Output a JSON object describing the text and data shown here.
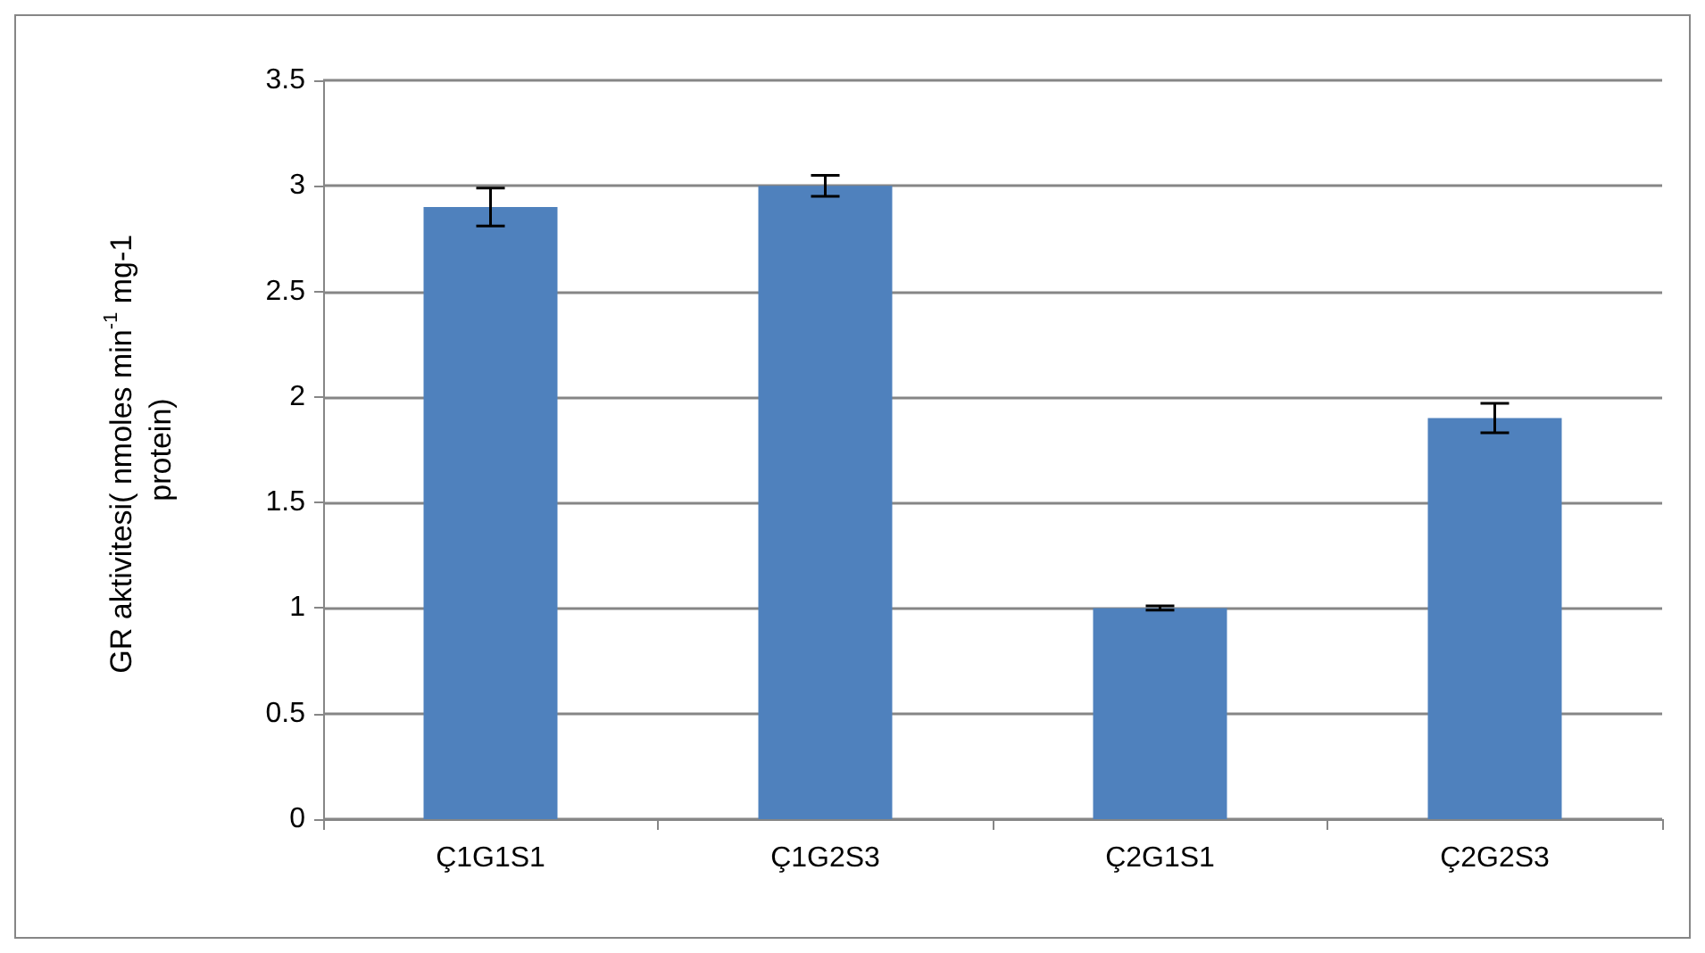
{
  "chart_data": {
    "type": "bar",
    "ylabel": "GR aktivitesi( nmoles min$^{-1}$ mg-1 protein)",
    "categories": [
      "Ç1G1S1",
      "Ç1G2S3",
      "Ç2G1S1",
      "Ç2G2S3"
    ],
    "values": [
      2.9,
      3.0,
      1.0,
      1.9
    ],
    "errors": [
      0.09,
      0.05,
      0.01,
      0.07
    ],
    "color": "#4f81bd",
    "ylim": [
      0,
      3.5
    ],
    "yticks": [
      0,
      0.5,
      1,
      1.5,
      2,
      2.5,
      3,
      3.5
    ],
    "grid": "y"
  }
}
